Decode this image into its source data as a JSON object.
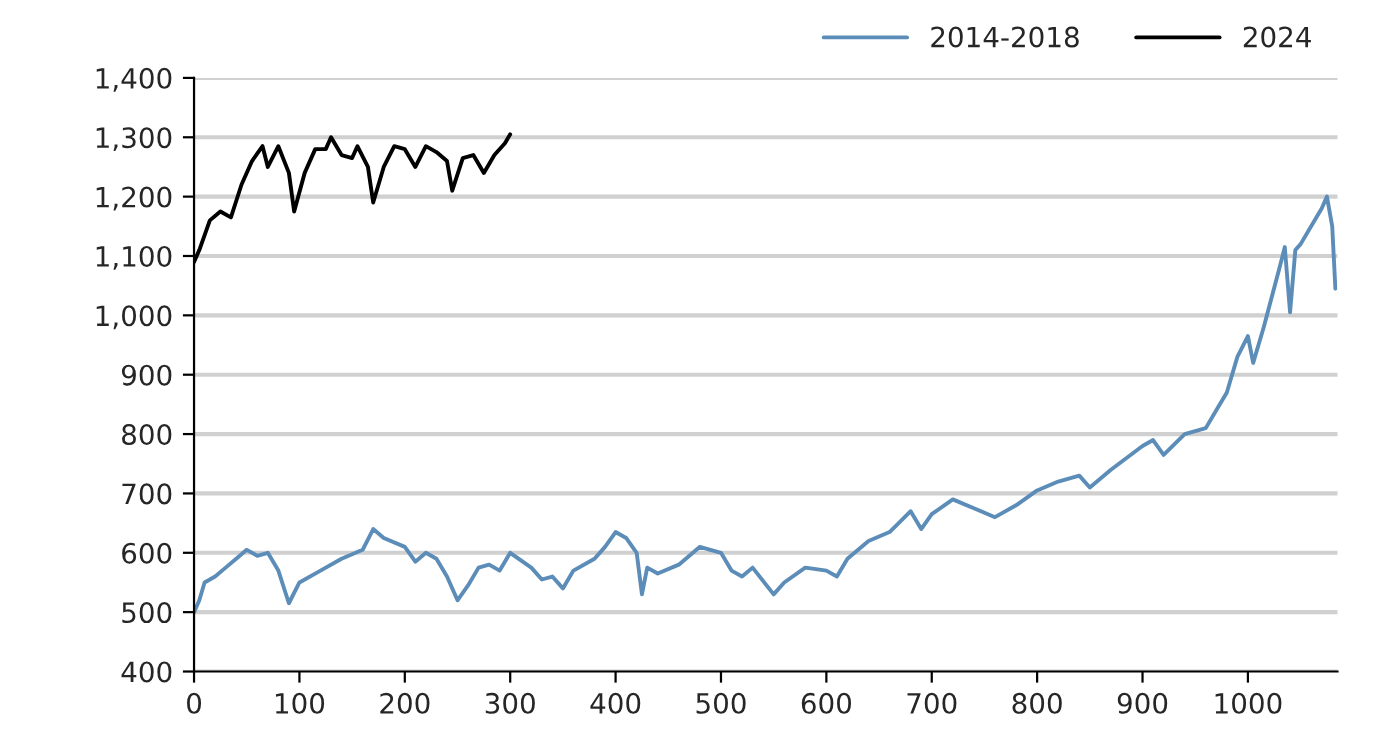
{
  "chart_data": {
    "type": "line",
    "xlim": [
      0,
      1085
    ],
    "xticks": [
      0,
      100,
      200,
      300,
      400,
      500,
      600,
      700,
      800,
      900,
      1000
    ],
    "ylim": [
      400,
      1400
    ],
    "yticks": [
      {
        "value": 400,
        "label": "400"
      },
      {
        "value": 500,
        "label": "500"
      },
      {
        "value": 600,
        "label": "600"
      },
      {
        "value": 700,
        "label": "700"
      },
      {
        "value": 800,
        "label": "800"
      },
      {
        "value": 900,
        "label": "900"
      },
      {
        "value": 1000,
        "label": "1,000"
      },
      {
        "value": 1100,
        "label": "1,100"
      },
      {
        "value": 1200,
        "label": "1,200"
      },
      {
        "value": 1300,
        "label": "1,300"
      },
      {
        "value": 1400,
        "label": "1,400"
      }
    ],
    "grid": "y",
    "legend": "top right",
    "marker": "none",
    "line_style": "solid",
    "series": [
      {
        "name": "2014-2018",
        "color": "#5b8db8",
        "x": [
          0,
          5,
          10,
          20,
          30,
          40,
          50,
          60,
          70,
          80,
          90,
          100,
          120,
          140,
          160,
          170,
          180,
          200,
          210,
          220,
          230,
          240,
          250,
          260,
          270,
          280,
          290,
          300,
          320,
          330,
          340,
          350,
          360,
          380,
          390,
          400,
          410,
          420,
          425,
          430,
          440,
          460,
          480,
          500,
          510,
          520,
          530,
          550,
          560,
          580,
          600,
          610,
          620,
          640,
          660,
          680,
          690,
          700,
          720,
          740,
          760,
          780,
          800,
          820,
          840,
          850,
          870,
          900,
          910,
          920,
          940,
          960,
          970,
          980,
          990,
          1000,
          1005,
          1015,
          1030,
          1035,
          1040,
          1045,
          1050,
          1060,
          1070,
          1075,
          1080,
          1083
        ],
        "values": [
          500,
          520,
          550,
          560,
          575,
          590,
          605,
          595,
          600,
          570,
          515,
          550,
          570,
          590,
          605,
          640,
          625,
          610,
          585,
          600,
          590,
          560,
          520,
          545,
          575,
          580,
          570,
          600,
          575,
          555,
          560,
          540,
          570,
          590,
          610,
          635,
          625,
          600,
          530,
          575,
          565,
          580,
          610,
          600,
          570,
          560,
          575,
          530,
          550,
          575,
          570,
          560,
          590,
          620,
          635,
          670,
          640,
          665,
          690,
          675,
          660,
          680,
          705,
          720,
          730,
          710,
          740,
          780,
          790,
          765,
          800,
          810,
          840,
          870,
          930,
          965,
          920,
          980,
          1080,
          1115,
          1005,
          1110,
          1120,
          1150,
          1180,
          1200,
          1150,
          1045
        ]
      },
      {
        "name": "2024",
        "color": "#000000",
        "x": [
          0,
          5,
          15,
          25,
          35,
          45,
          55,
          65,
          70,
          80,
          90,
          95,
          105,
          115,
          125,
          130,
          140,
          150,
          155,
          165,
          170,
          180,
          190,
          200,
          210,
          220,
          230,
          240,
          245,
          255,
          265,
          275,
          285,
          295,
          300
        ],
        "values": [
          1090,
          1110,
          1160,
          1175,
          1165,
          1220,
          1260,
          1285,
          1250,
          1285,
          1240,
          1175,
          1240,
          1280,
          1280,
          1300,
          1270,
          1265,
          1285,
          1250,
          1190,
          1250,
          1285,
          1280,
          1250,
          1285,
          1275,
          1260,
          1210,
          1265,
          1270,
          1240,
          1270,
          1290,
          1305
        ]
      }
    ]
  }
}
